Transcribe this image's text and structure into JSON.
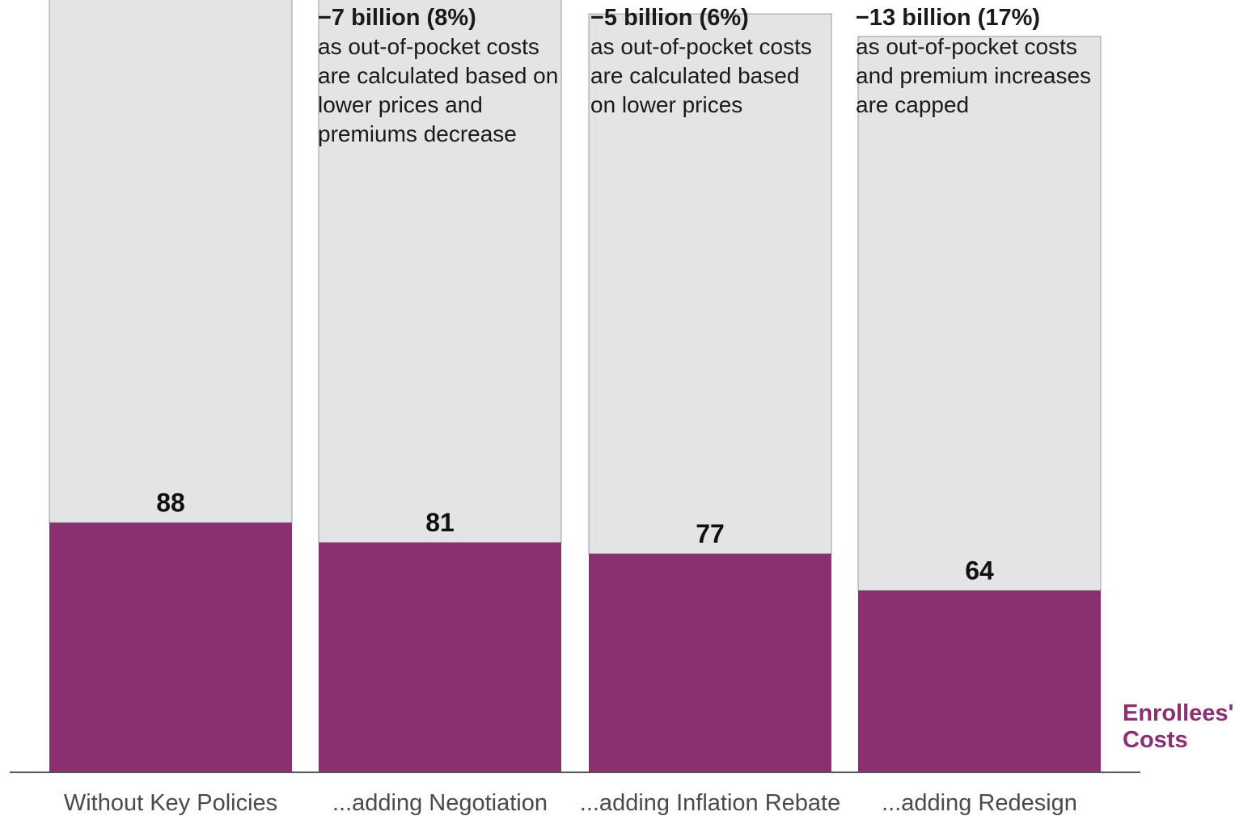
{
  "chart_data": {
    "type": "bar",
    "categories": [
      "Without Key Policies",
      "...adding Negotiation",
      "...adding Inflation Rebate",
      "...adding Redesign"
    ],
    "series": [
      {
        "name": "Enrollees' Costs",
        "values": [
          88,
          81,
          77,
          64
        ],
        "color": "#8a3070"
      },
      {
        "name": "",
        "values": [
          227,
          203,
          191,
          196
        ],
        "color": "#e3e4e6"
      }
    ],
    "data_labels": [
      "88",
      "81",
      "77",
      "64"
    ],
    "legend_lines": [
      "Enrollees'",
      "Costs"
    ],
    "annotations": [
      {
        "category_index": 1,
        "head": "−7 billion (8%)",
        "text": "as out-of-pocket costs are calculated based on lower prices and premiums decrease"
      },
      {
        "category_index": 2,
        "head": "−5 billion (6%)",
        "text": "as out-of-pocket costs are calculated based on lower prices"
      },
      {
        "category_index": 3,
        "head": "−13 billion (17%)",
        "text": "as out-of-pocket costs and premium increases are capped"
      }
    ],
    "ylim": [
      0,
      228
    ],
    "grid": false,
    "title": "",
    "xlabel": "",
    "ylabel": ""
  }
}
